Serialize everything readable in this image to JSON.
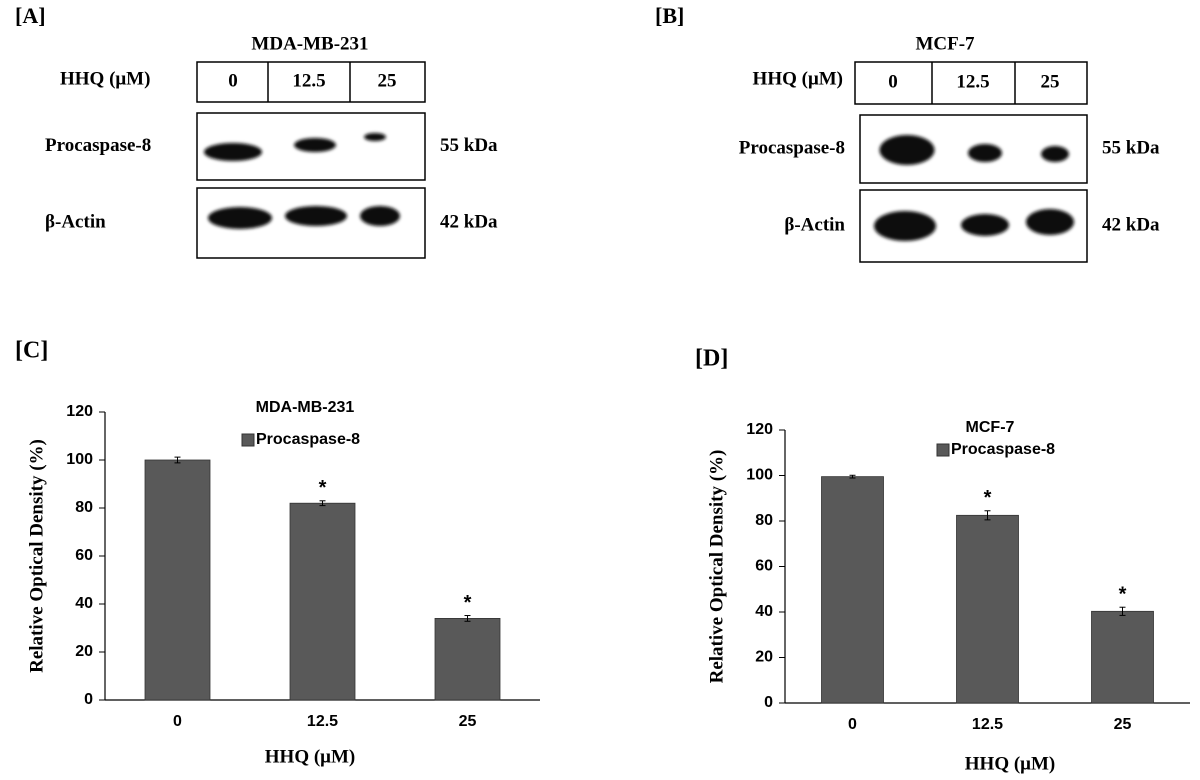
{
  "blots": [
    {
      "panel_label": "[A]",
      "title": "MDA-MB-231",
      "treatment_label": "HHQ (μM)",
      "lanes": [
        "0",
        "12.5",
        "25"
      ],
      "rows": [
        {
          "name": "Procaspase-8",
          "size": "55 kDa"
        },
        {
          "name": "β-Actin",
          "size": "42 kDa"
        }
      ]
    },
    {
      "panel_label": "[B]",
      "title": "MCF-7",
      "treatment_label": "HHQ (μM)",
      "lanes": [
        "0",
        "12.5",
        "25"
      ],
      "rows": [
        {
          "name": "Procaspase-8",
          "size": "55 kDa"
        },
        {
          "name": "β-Actin",
          "size": "42 kDa"
        }
      ]
    }
  ],
  "chart_data": [
    {
      "type": "bar",
      "panel_label": "[C]",
      "title": "MDA-MB-231",
      "ylabel": "Relative Optical Density  (%)",
      "xlabel": "HHQ (μM)",
      "categories": [
        "0",
        "12.5",
        "25"
      ],
      "series": [
        {
          "name": "Procaspase-8",
          "color": "#595959",
          "values": [
            100,
            82,
            34
          ],
          "errors": [
            1.2,
            1,
            1.2
          ],
          "significance": [
            null,
            "*",
            "*"
          ]
        }
      ],
      "ylim": [
        0,
        120
      ],
      "yticks": [
        0,
        20,
        40,
        60,
        80,
        100,
        120
      ]
    },
    {
      "type": "bar",
      "panel_label": "[D]",
      "title": "MCF-7",
      "ylabel": "Relative Optical Density  (%)",
      "xlabel": "HHQ (μM)",
      "categories": [
        "0",
        "12.5",
        "25"
      ],
      "series": [
        {
          "name": "Procaspase-8",
          "color": "#595959",
          "values": [
            99.5,
            82.5,
            40.3
          ],
          "errors": [
            0.6,
            2,
            1.8
          ],
          "significance": [
            null,
            "*",
            "*"
          ]
        }
      ],
      "ylim": [
        0,
        120
      ],
      "yticks": [
        0,
        20,
        40,
        60,
        80,
        100,
        120
      ]
    }
  ]
}
